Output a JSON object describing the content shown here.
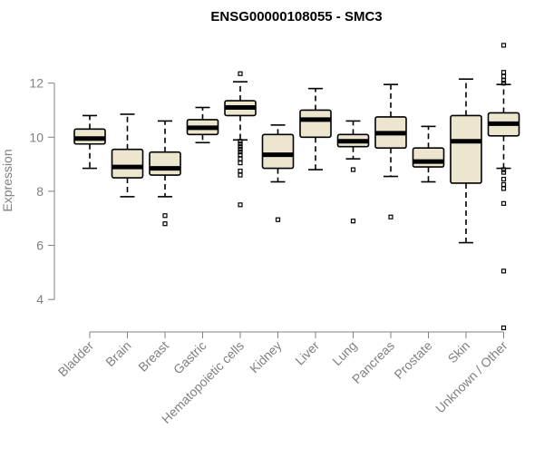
{
  "chart_data": {
    "type": "boxplot",
    "title": "ENSG00000108055 - SMC3",
    "xlabel": "",
    "ylabel": "Expression",
    "ylim": [
      3.0,
      13.8
    ],
    "yticks": [
      4,
      6,
      8,
      10,
      12
    ],
    "box_fill": "#ede6cf",
    "categories": [
      "Bladder",
      "Brain",
      "Breast",
      "Gastric",
      "Hematopoietic cells",
      "Kidney",
      "Liver",
      "Lung",
      "Pancreas",
      "Prostate",
      "Skin",
      "Unknown / Other"
    ],
    "boxes": [
      {
        "whisker_low": 8.85,
        "q1": 9.75,
        "median": 9.95,
        "q3": 10.3,
        "whisker_high": 10.8,
        "outliers": []
      },
      {
        "whisker_low": 7.8,
        "q1": 8.5,
        "median": 8.9,
        "q3": 9.55,
        "whisker_high": 10.85,
        "outliers": []
      },
      {
        "whisker_low": 7.8,
        "q1": 8.6,
        "median": 8.85,
        "q3": 9.45,
        "whisker_high": 10.6,
        "outliers": [
          7.1,
          6.8
        ]
      },
      {
        "whisker_low": 9.8,
        "q1": 10.1,
        "median": 10.35,
        "q3": 10.65,
        "whisker_high": 11.1,
        "outliers": []
      },
      {
        "whisker_low": 9.9,
        "q1": 10.8,
        "median": 11.1,
        "q3": 11.35,
        "whisker_high": 12.05,
        "outliers": [
          12.35,
          9.85,
          9.75,
          9.65,
          9.55,
          9.45,
          9.35,
          9.2,
          9.05,
          8.75,
          8.6,
          7.5
        ]
      },
      {
        "whisker_low": 8.35,
        "q1": 8.85,
        "median": 9.35,
        "q3": 10.1,
        "whisker_high": 10.45,
        "outliers": [
          6.95
        ]
      },
      {
        "whisker_low": 8.8,
        "q1": 10.0,
        "median": 10.65,
        "q3": 11.0,
        "whisker_high": 11.8,
        "outliers": []
      },
      {
        "whisker_low": 9.2,
        "q1": 9.65,
        "median": 9.85,
        "q3": 10.1,
        "whisker_high": 10.6,
        "outliers": [
          8.8,
          6.9
        ]
      },
      {
        "whisker_low": 8.55,
        "q1": 9.6,
        "median": 10.15,
        "q3": 10.75,
        "whisker_high": 11.95,
        "outliers": [
          7.05
        ]
      },
      {
        "whisker_low": 8.35,
        "q1": 8.9,
        "median": 9.1,
        "q3": 9.6,
        "whisker_high": 10.4,
        "outliers": []
      },
      {
        "whisker_low": 6.1,
        "q1": 8.3,
        "median": 9.85,
        "q3": 10.8,
        "whisker_high": 12.15,
        "outliers": []
      },
      {
        "whisker_low": 8.85,
        "q1": 10.05,
        "median": 10.5,
        "q3": 10.9,
        "whisker_high": 11.95,
        "outliers": [
          13.4,
          12.4,
          12.25,
          12.1,
          12.0,
          8.8,
          8.7,
          8.45,
          8.25,
          8.1,
          7.55,
          5.05,
          2.95
        ]
      }
    ]
  }
}
